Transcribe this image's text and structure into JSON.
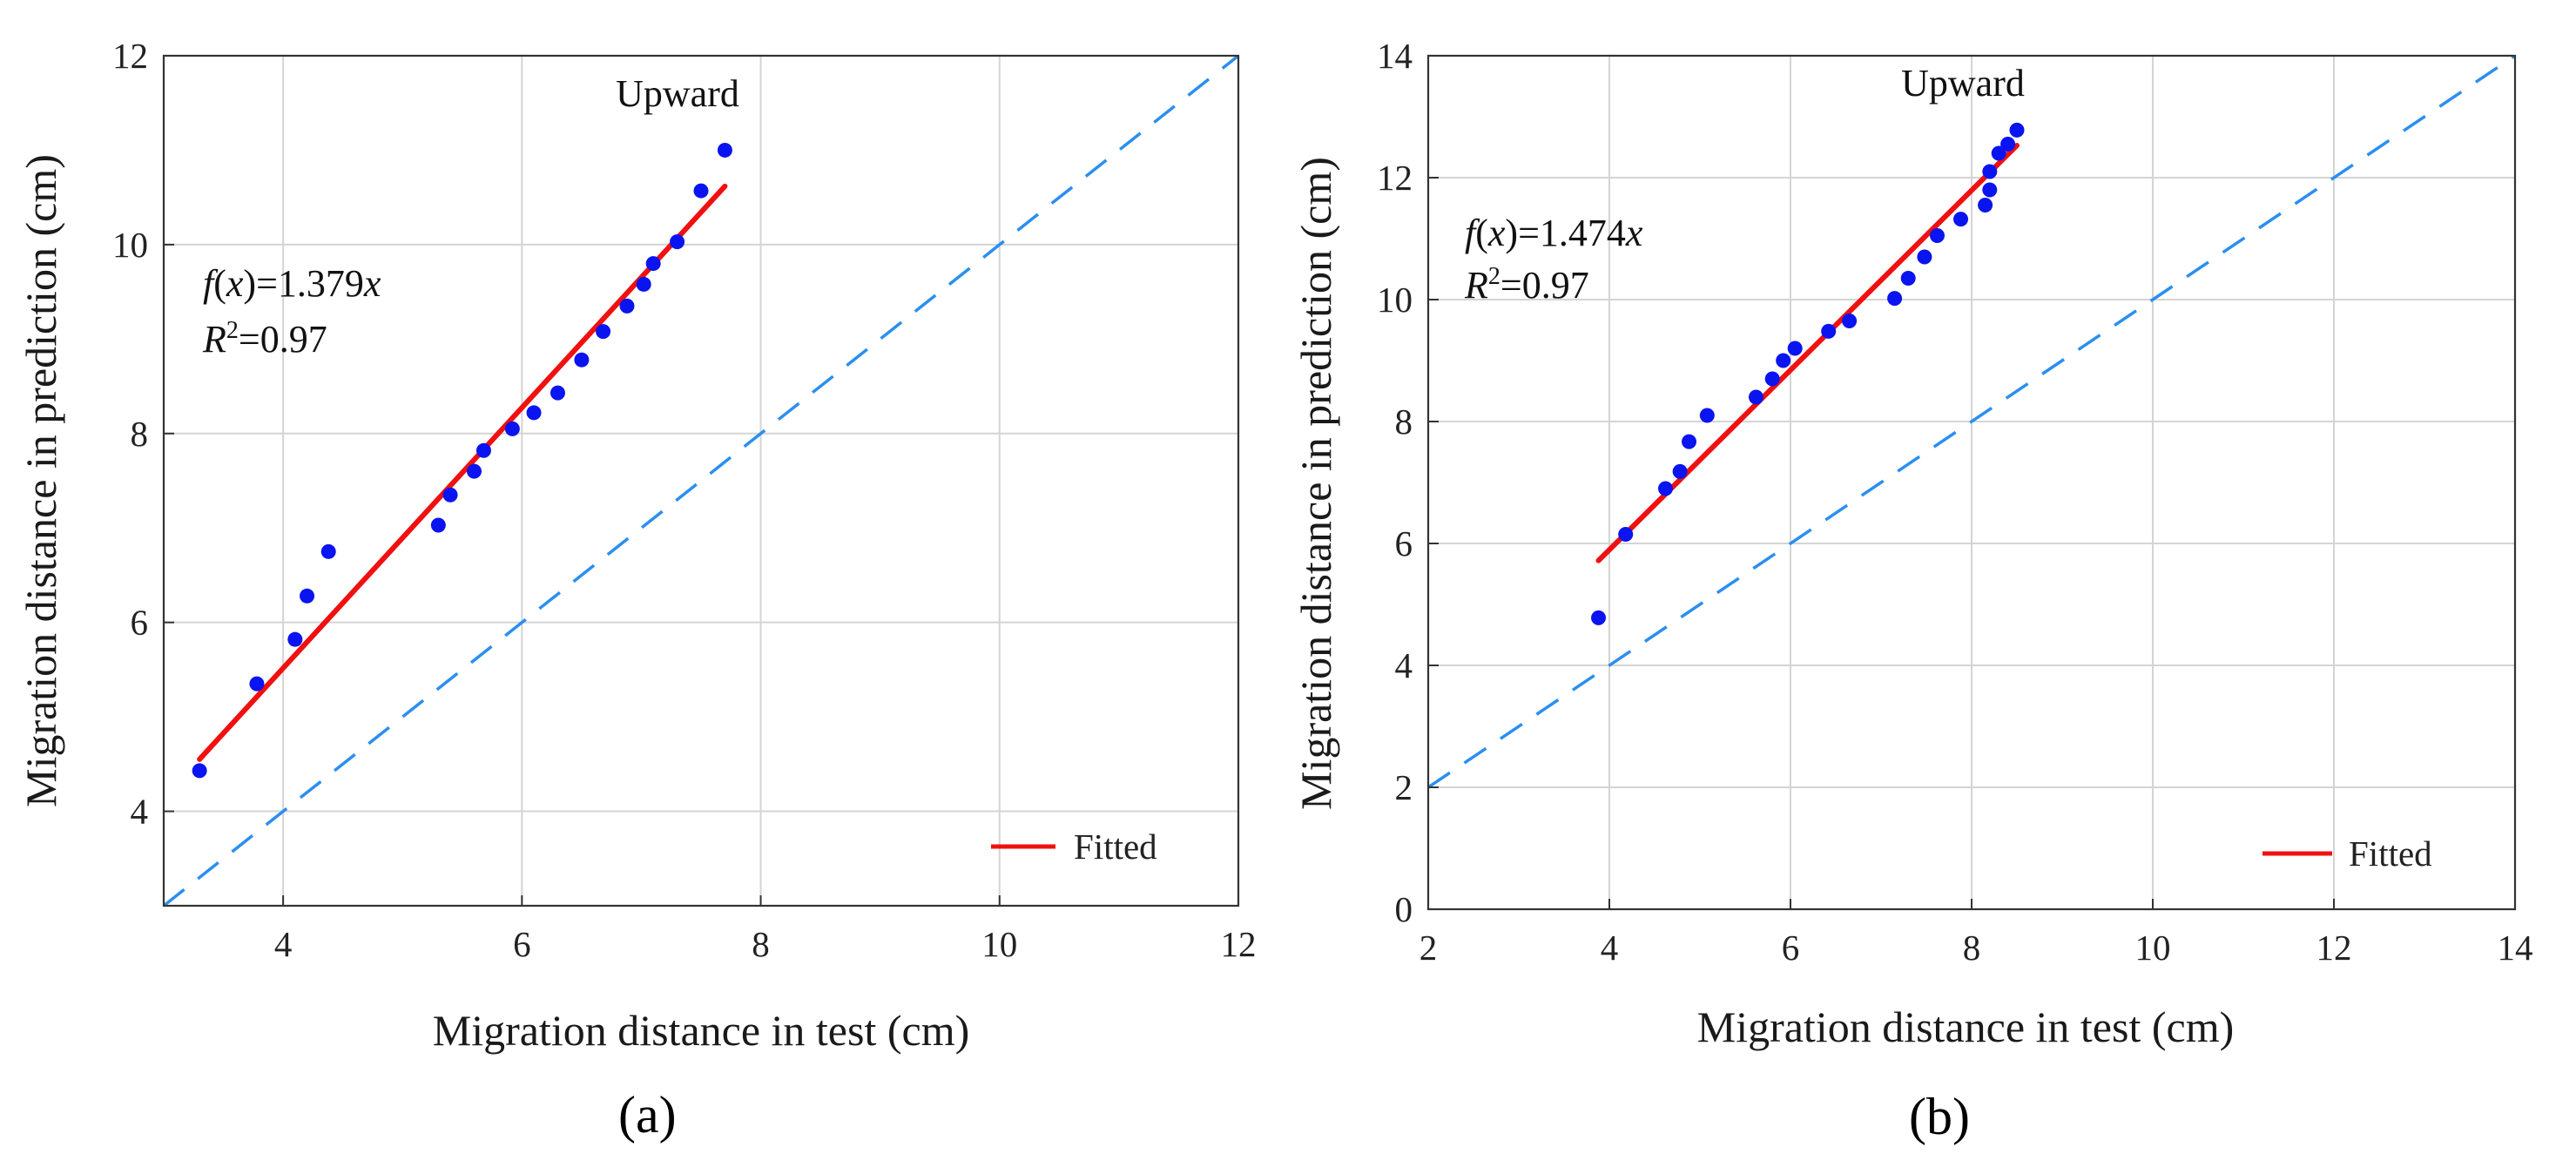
{
  "chart_data": [
    {
      "type": "scatter",
      "panel_label": "(a)",
      "title": "Upward",
      "xlabel": "Migration distance in test (cm)",
      "ylabel": "Migration distance in prediction (cm)",
      "xlim": [
        3,
        12
      ],
      "ylim": [
        3,
        12
      ],
      "xticks": [
        4,
        6,
        8,
        10,
        12
      ],
      "yticks": [
        4,
        6,
        8,
        10,
        12
      ],
      "grid": true,
      "colors": {
        "points": "#0a14f0",
        "fit": "#f01010",
        "diagonal": "#2a8ff0",
        "grid": "#d4d4d4"
      },
      "points": [
        [
          3.3,
          4.43
        ],
        [
          3.78,
          5.35
        ],
        [
          4.1,
          5.82
        ],
        [
          4.2,
          6.28
        ],
        [
          4.38,
          6.75
        ],
        [
          5.3,
          7.03
        ],
        [
          5.4,
          7.35
        ],
        [
          5.6,
          7.6
        ],
        [
          5.68,
          7.82
        ],
        [
          5.92,
          8.05
        ],
        [
          6.1,
          8.22
        ],
        [
          6.3,
          8.43
        ],
        [
          6.5,
          8.78
        ],
        [
          6.68,
          9.08
        ],
        [
          6.88,
          9.35
        ],
        [
          7.02,
          9.58
        ],
        [
          7.1,
          9.8
        ],
        [
          7.3,
          10.03
        ],
        [
          7.5,
          10.57
        ],
        [
          7.7,
          11.0
        ]
      ],
      "fit": {
        "slope": 1.379,
        "x_range": [
          3.3,
          7.7
        ]
      },
      "diagonal": {
        "slope": 1,
        "style": "dashed"
      },
      "equation_label": "=1.379",
      "equation_fx": "f",
      "equation_x_var": "x",
      "equation_var": "x",
      "r2_label": "=0.97",
      "r2_var": "R",
      "r2_sup": "2",
      "legend": [
        {
          "name": "Fitted",
          "marker": "line",
          "color": "#f01010"
        }
      ]
    },
    {
      "type": "scatter",
      "panel_label": "(b)",
      "title": "Upward",
      "xlabel": "Migration distance in test (cm)",
      "ylabel": "Migration distance in prediction (cm)",
      "xlim": [
        2,
        14
      ],
      "ylim": [
        0,
        14
      ],
      "xticks": [
        2,
        4,
        6,
        8,
        10,
        12,
        14
      ],
      "yticks": [
        0,
        2,
        4,
        6,
        8,
        10,
        12,
        14
      ],
      "grid": true,
      "colors": {
        "points": "#0a14f0",
        "fit": "#f01010",
        "diagonal": "#2a8ff0",
        "grid": "#d4d4d4"
      },
      "points": [
        [
          3.88,
          4.78
        ],
        [
          4.18,
          6.15
        ],
        [
          4.62,
          6.9
        ],
        [
          4.78,
          7.18
        ],
        [
          4.88,
          7.67
        ],
        [
          5.08,
          8.1
        ],
        [
          5.62,
          8.4
        ],
        [
          5.8,
          8.7
        ],
        [
          5.92,
          9.0
        ],
        [
          6.05,
          9.2
        ],
        [
          6.42,
          9.48
        ],
        [
          6.65,
          9.65
        ],
        [
          7.15,
          10.02
        ],
        [
          7.3,
          10.35
        ],
        [
          7.48,
          10.7
        ],
        [
          7.62,
          11.05
        ],
        [
          7.88,
          11.32
        ],
        [
          8.15,
          11.55
        ],
        [
          8.2,
          11.8
        ],
        [
          8.2,
          12.1
        ],
        [
          8.3,
          12.4
        ],
        [
          8.4,
          12.55
        ],
        [
          8.5,
          12.78
        ]
      ],
      "fit": {
        "slope": 1.474,
        "x_range": [
          3.88,
          8.5
        ]
      },
      "diagonal": {
        "slope": 1,
        "style": "dashed"
      },
      "equation_label": "=1.474",
      "equation_fx": "f",
      "equation_x_var": "x",
      "equation_var": "x",
      "r2_label": "=0.97",
      "r2_var": "R",
      "r2_sup": "2",
      "legend": [
        {
          "name": "Fitted",
          "marker": "line",
          "color": "#f01010"
        }
      ]
    }
  ]
}
